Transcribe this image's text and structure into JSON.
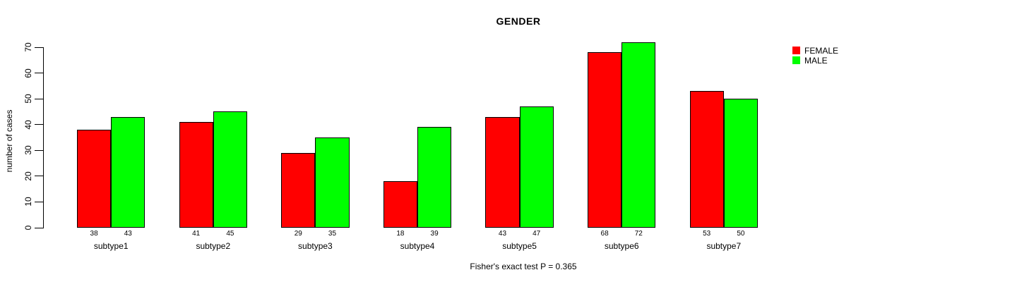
{
  "page": {
    "background": "#ffffff"
  },
  "chart_data": {
    "type": "bar",
    "title": "GENDER",
    "ylabel": "number of cases",
    "xlabel": "",
    "categories": [
      "subtype1",
      "subtype2",
      "subtype3",
      "subtype4",
      "subtype5",
      "subtype6",
      "subtype7"
    ],
    "series": [
      {
        "name": "FEMALE",
        "color": "#FF0000",
        "values": [
          38,
          41,
          29,
          18,
          43,
          68,
          53
        ]
      },
      {
        "name": "MALE",
        "color": "#00FF00",
        "values": [
          43,
          45,
          35,
          39,
          47,
          72,
          50
        ]
      }
    ],
    "ylim": [
      0,
      70
    ],
    "yticks": [
      0,
      10,
      20,
      30,
      40,
      50,
      60,
      70
    ],
    "bar_value_labels_shown": true,
    "grid": false,
    "legend_position": "top-right",
    "footer": "Fisher's exact test P = 0.365"
  }
}
